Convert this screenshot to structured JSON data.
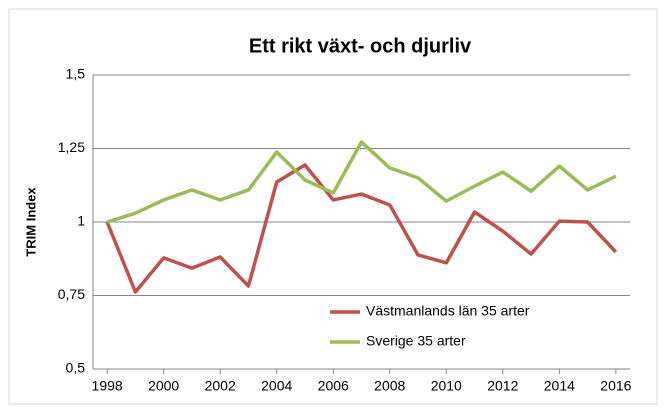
{
  "chart_data": {
    "type": "line",
    "title": "Ett rikt växt- och djurliv",
    "y_label": "TRIM Index",
    "x": [
      1998,
      1999,
      2000,
      2001,
      2002,
      2003,
      2004,
      2005,
      2006,
      2007,
      2008,
      2009,
      2010,
      2011,
      2012,
      2013,
      2014,
      2015,
      2016
    ],
    "xlim": [
      1997.5,
      2016.5
    ],
    "xticks": [
      1998,
      2000,
      2002,
      2004,
      2006,
      2008,
      2010,
      2012,
      2014,
      2016
    ],
    "ylim": [
      0.5,
      1.5
    ],
    "yticks": [
      {
        "value": 0.5,
        "label": "0,5"
      },
      {
        "value": 0.75,
        "label": "0,75"
      },
      1,
      {
        "value": 1.25,
        "label": "1,25"
      },
      {
        "value": 1.5,
        "label": "1,5"
      }
    ],
    "grid": true,
    "legend": "lower right",
    "series": [
      {
        "name": "Västmanlands län 35 arter",
        "color": "#c0504d",
        "values": [
          1.0,
          0.762,
          0.878,
          0.843,
          0.881,
          0.782,
          1.136,
          1.194,
          1.075,
          1.095,
          1.058,
          0.888,
          0.861,
          1.034,
          0.969,
          0.891,
          1.003,
          1.0,
          0.898
        ]
      },
      {
        "name": "Sverige 35 arter",
        "color": "#9bbb59",
        "values": [
          1.0,
          1.03,
          1.075,
          1.109,
          1.075,
          1.109,
          1.238,
          1.143,
          1.099,
          1.272,
          1.184,
          1.15,
          1.071,
          1.122,
          1.17,
          1.105,
          1.19,
          1.109,
          1.156
        ]
      }
    ]
  }
}
